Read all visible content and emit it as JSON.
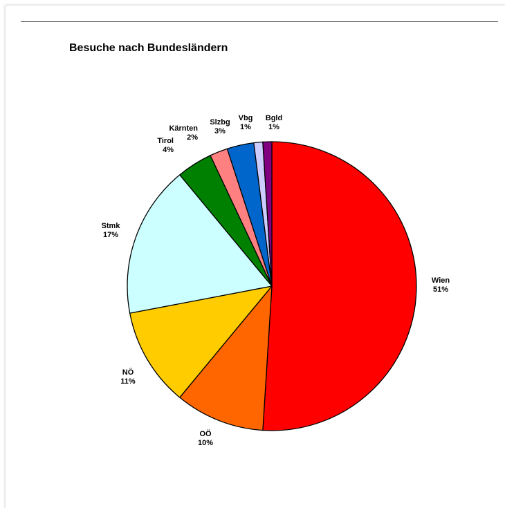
{
  "chart_data": {
    "type": "pie",
    "title": "Besuche nach Bundesländern",
    "start": "12 o'clock",
    "direction": "clockwise",
    "slices": [
      {
        "label": "Wien",
        "value": 51,
        "value_label": "51%",
        "color": "#ff0000"
      },
      {
        "label": "OÖ",
        "value": 10,
        "value_label": "10%",
        "color": "#ff6600"
      },
      {
        "label": "NÖ",
        "value": 11,
        "value_label": "11%",
        "color": "#ffcc00"
      },
      {
        "label": "Stmk",
        "value": 17,
        "value_label": "17%",
        "color": "#ccffff"
      },
      {
        "label": "Tirol",
        "value": 4,
        "value_label": "4%",
        "color": "#008000"
      },
      {
        "label": "Kärnten",
        "value": 2,
        "value_label": "2%",
        "color": "#ff8080"
      },
      {
        "label": "Slzbg",
        "value": 3,
        "value_label": "3%",
        "color": "#0066cc"
      },
      {
        "label": "Vbg",
        "value": 1,
        "value_label": "1%",
        "color": "#ccccff"
      },
      {
        "label": "Bgld",
        "value": 1,
        "value_label": "1%",
        "color": "#800080"
      }
    ]
  }
}
